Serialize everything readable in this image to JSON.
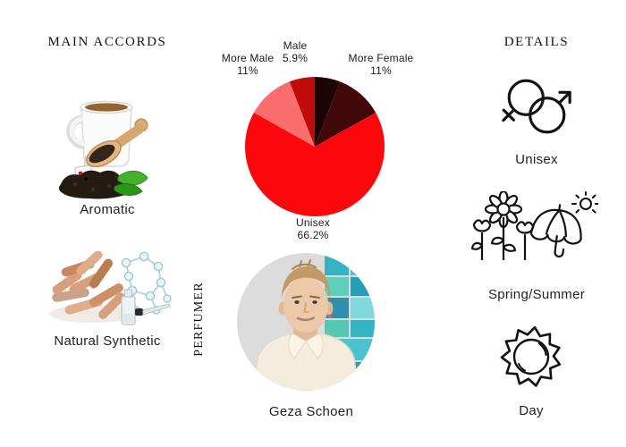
{
  "main_accords": {
    "header": "MAIN ACCORDS",
    "items": [
      {
        "label": "Aromatic",
        "image": "tea-cup-scoop-leaves-photo"
      },
      {
        "label": "Natural Synthetic",
        "image": "wood-sticks-molecule-vial-photo"
      }
    ]
  },
  "perfumer": {
    "section_label": "PERFUMER",
    "name": "Geza Schoen",
    "photo": "geza-schoen-portrait"
  },
  "details": {
    "header": "DETAILS",
    "items": [
      {
        "label": "Unisex",
        "icon": "unisex-gender-icon"
      },
      {
        "label": "Spring/Summer",
        "icon": "spring-summer-icon"
      },
      {
        "label": "Day",
        "icon": "day-sun-icon"
      }
    ]
  },
  "chart_data": {
    "type": "pie",
    "title": "Gender audience split",
    "legend_position": "around-labels",
    "direction": "clockwise",
    "start_angle_deg_from_top": 0,
    "slices": [
      {
        "label": "Female",
        "value": 5.9,
        "color": "#1d0404",
        "label_visible": false,
        "estimated": true
      },
      {
        "label": "More Female",
        "value": 11,
        "color": "#420708",
        "label_visible": true
      },
      {
        "label": "Unisex",
        "value": 66.2,
        "color": "#fb070c",
        "label_visible": true
      },
      {
        "label": "More Male",
        "value": 11,
        "color": "#fb6d6d",
        "label_visible": true
      },
      {
        "label": "Male",
        "value": 5.9,
        "color": "#c00b0b",
        "label_visible": true
      }
    ],
    "callouts": {
      "more_male": {
        "name": "More Male",
        "pct": "11%"
      },
      "male": {
        "name": "Male",
        "pct": "5.9%"
      },
      "more_female": {
        "name": "More Female",
        "pct": "11%"
      },
      "unisex": {
        "name": "Unisex",
        "pct": "66.2%"
      }
    }
  },
  "palette": {
    "text": "#1d1d1d",
    "unisex_red": "#fb070c",
    "more_male_salmon": "#fb6d6d",
    "male_red": "#c00b0b",
    "more_female_maroon": "#420708",
    "female_black": "#1d0404"
  }
}
